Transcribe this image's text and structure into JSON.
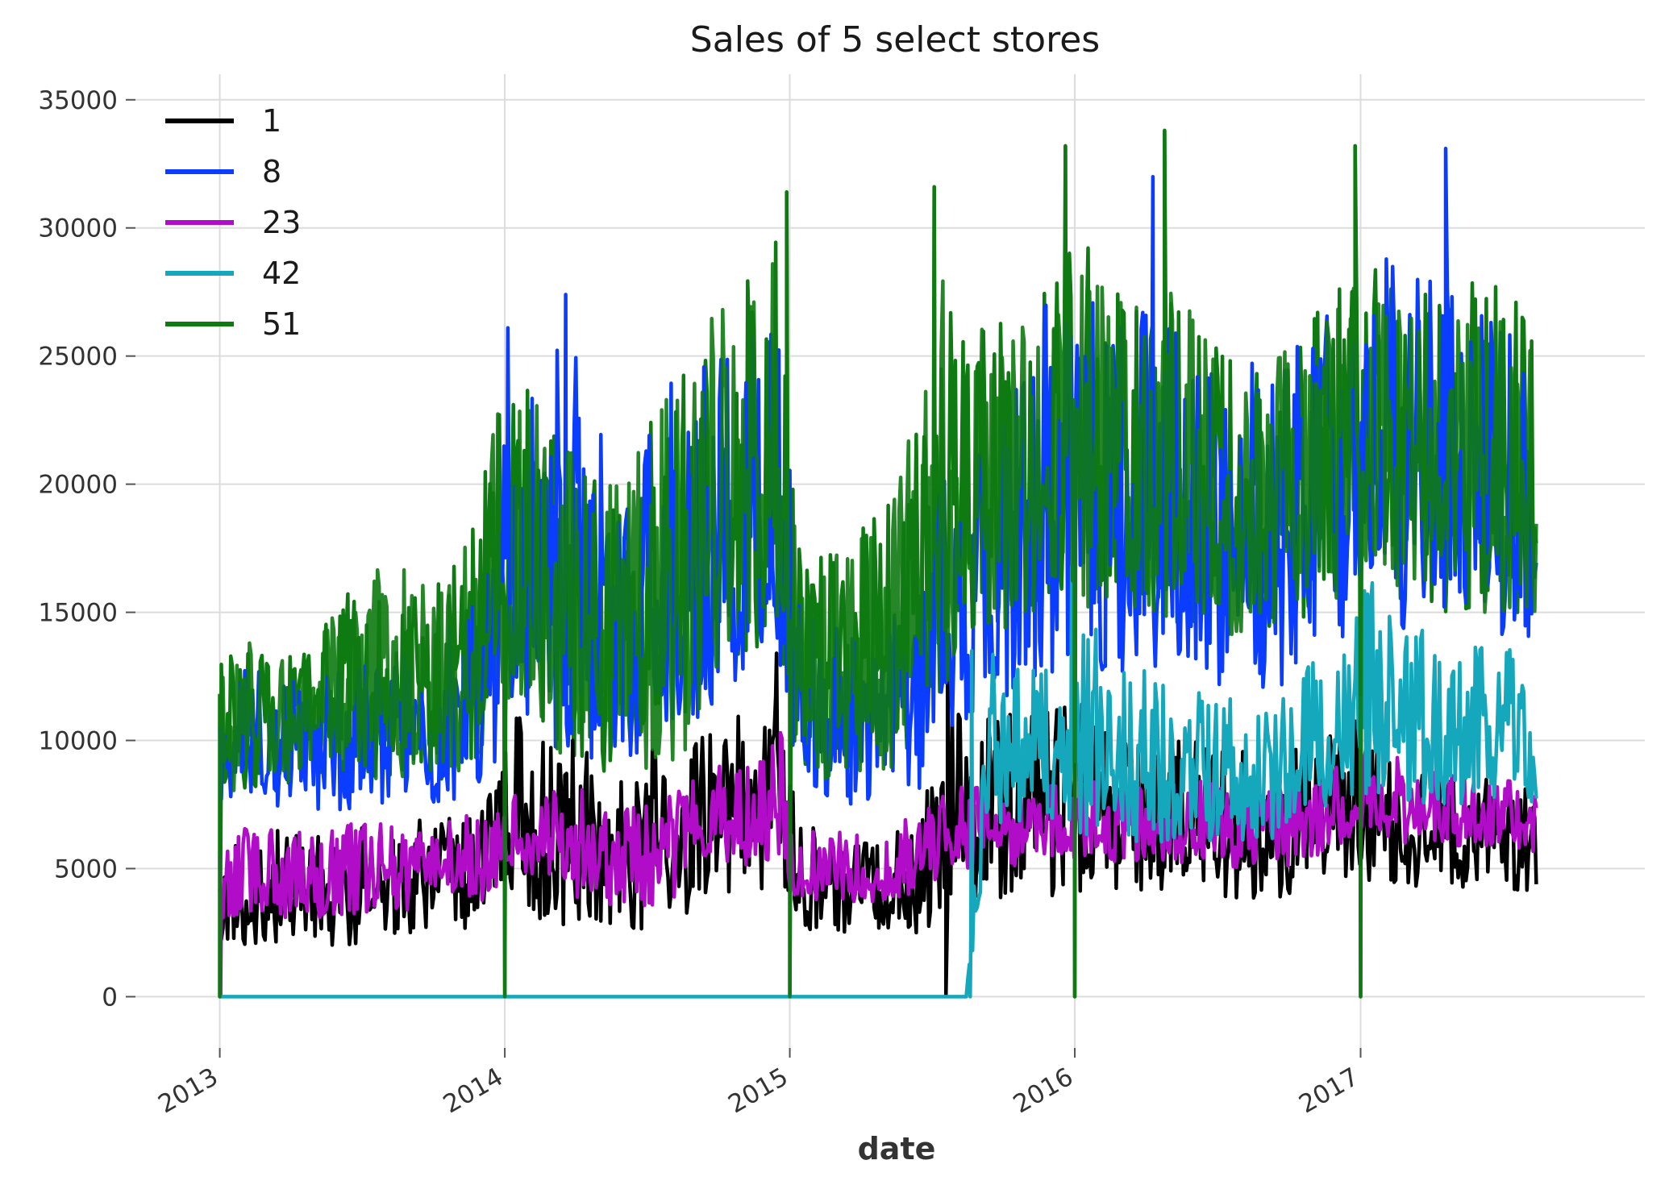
{
  "chart_data": {
    "type": "line",
    "title": "Sales of 5 select stores",
    "xlabel": "date",
    "ylabel": "",
    "xlim": [
      "2012-09-15",
      "2017-12-31"
    ],
    "ylim": [
      -2000,
      36000
    ],
    "x_ticks": [
      "2013",
      "2014",
      "2015",
      "2016",
      "2017"
    ],
    "y_ticks": [
      0,
      5000,
      10000,
      15000,
      20000,
      25000,
      30000,
      35000
    ],
    "y_tick_labels": [
      "0",
      "5000",
      "10000",
      "15000",
      "20000",
      "25000",
      "30000",
      "35000"
    ],
    "grid": true,
    "legend_position": "top-left",
    "sampling": "monthly approximate envelope (typical low/high) with notable spikes",
    "series": [
      {
        "name": "1",
        "color": "#000000",
        "x": [
          "2013-01",
          "2013-02",
          "2013-03",
          "2013-04",
          "2013-05",
          "2013-06",
          "2013-07",
          "2013-08",
          "2013-09",
          "2013-10",
          "2013-11",
          "2013-12",
          "2014-01",
          "2014-02",
          "2014-03",
          "2014-04",
          "2014-05",
          "2014-06",
          "2014-07",
          "2014-08",
          "2014-09",
          "2014-10",
          "2014-11",
          "2014-12",
          "2015-01",
          "2015-02",
          "2015-03",
          "2015-04",
          "2015-05",
          "2015-06",
          "2015-07",
          "2015-08",
          "2015-09",
          "2015-10",
          "2015-11",
          "2015-12",
          "2016-01",
          "2016-02",
          "2016-03",
          "2016-04",
          "2016-05",
          "2016-06",
          "2016-07",
          "2016-08",
          "2016-09",
          "2016-10",
          "2016-11",
          "2016-12",
          "2017-01",
          "2017-02",
          "2017-03",
          "2017-04",
          "2017-05",
          "2017-06",
          "2017-07",
          "2017-08"
        ],
        "low": [
          2000,
          2000,
          2000,
          2000,
          2000,
          2000,
          2200,
          2300,
          2400,
          2500,
          2500,
          2600,
          4000,
          3000,
          2500,
          2500,
          2500,
          2500,
          2500,
          3000,
          4000,
          4000,
          4000,
          4500,
          2500,
          2500,
          2500,
          2500,
          2500,
          2500,
          3000,
          3000,
          3500,
          3500,
          3800,
          4000,
          4000,
          4000,
          4000,
          4000,
          4000,
          4000,
          3800,
          3800,
          3800,
          4000,
          4200,
          4500,
          4500,
          4200,
          4200,
          4200,
          4200,
          4200,
          4200,
          4000
        ],
        "high": [
          6000,
          6000,
          6500,
          6500,
          6500,
          6500,
          6800,
          6800,
          7000,
          7000,
          7000,
          9500,
          11500,
          10000,
          10000,
          10000,
          9000,
          9000,
          10000,
          9000,
          11000,
          11000,
          11000,
          12000,
          7000,
          6500,
          6000,
          6000,
          6500,
          7000,
          11500,
          11000,
          11000,
          12000,
          12000,
          11500,
          11500,
          11000,
          10000,
          10000,
          10000,
          10000,
          10000,
          9500,
          9500,
          10000,
          10000,
          11000,
          11000,
          9000,
          9000,
          8500,
          8500,
          8500,
          8500,
          8000
        ],
        "spikes": [
          [
            "2014-12-15",
            13400
          ],
          [
            "2015-07-20",
            0
          ],
          [
            "2015-07-22",
            13400
          ]
        ]
      },
      {
        "name": "8",
        "color": "#0a3dff",
        "x": [
          "2013-01",
          "2013-02",
          "2013-03",
          "2013-04",
          "2013-05",
          "2013-06",
          "2013-07",
          "2013-08",
          "2013-09",
          "2013-10",
          "2013-11",
          "2013-12",
          "2014-01",
          "2014-02",
          "2014-03",
          "2014-04",
          "2014-05",
          "2014-06",
          "2014-07",
          "2014-08",
          "2014-09",
          "2014-10",
          "2014-11",
          "2014-12",
          "2015-01",
          "2015-02",
          "2015-03",
          "2015-04",
          "2015-05",
          "2015-06",
          "2015-07",
          "2015-08",
          "2015-09",
          "2015-10",
          "2015-11",
          "2015-12",
          "2016-01",
          "2016-02",
          "2016-03",
          "2016-04",
          "2016-05",
          "2016-06",
          "2016-07",
          "2016-08",
          "2016-09",
          "2016-10",
          "2016-11",
          "2016-12",
          "2017-01",
          "2017-02",
          "2017-03",
          "2017-04",
          "2017-05",
          "2017-06",
          "2017-07",
          "2017-08"
        ],
        "low": [
          7000,
          7000,
          7000,
          7000,
          7000,
          7000,
          7500,
          7500,
          7500,
          7500,
          8000,
          8500,
          11000,
          10000,
          9500,
          9000,
          9000,
          9000,
          9500,
          10000,
          11000,
          11500,
          12000,
          13000,
          8000,
          7500,
          7500,
          7500,
          8000,
          8000,
          10000,
          10500,
          11000,
          11500,
          12000,
          12500,
          12500,
          12500,
          12500,
          12500,
          12500,
          12500,
          12000,
          12000,
          12000,
          12500,
          13000,
          14000,
          14500,
          14000,
          14000,
          14000,
          14000,
          14000,
          14000,
          14000
        ],
        "high": [
          13000,
          13000,
          12000,
          12500,
          13000,
          13000,
          13500,
          14000,
          14000,
          14500,
          15000,
          17000,
          26000,
          24000,
          27000,
          25000,
          22000,
          22000,
          24000,
          24000,
          26000,
          26500,
          27000,
          28000,
          16000,
          14500,
          14500,
          14500,
          15000,
          16000,
          21000,
          21000,
          22000,
          25000,
          27000,
          28000,
          27500,
          27000,
          27000,
          26500,
          26000,
          26000,
          25000,
          25000,
          25000,
          26000,
          27000,
          28500,
          28500,
          29000,
          28000,
          28000,
          27000,
          27000,
          26500,
          22000
        ],
        "spikes": [
          [
            "2014-01-05",
            26100
          ],
          [
            "2014-03-20",
            27400
          ],
          [
            "2016-04-10",
            32000
          ],
          [
            "2017-04-20",
            33100
          ]
        ]
      },
      {
        "name": "23",
        "color": "#b10dc9",
        "x": [
          "2013-01",
          "2013-02",
          "2013-03",
          "2013-04",
          "2013-05",
          "2013-06",
          "2013-07",
          "2013-08",
          "2013-09",
          "2013-10",
          "2013-11",
          "2013-12",
          "2014-01",
          "2014-02",
          "2014-03",
          "2014-04",
          "2014-05",
          "2014-06",
          "2014-07",
          "2014-08",
          "2014-09",
          "2014-10",
          "2014-11",
          "2014-12",
          "2015-01",
          "2015-02",
          "2015-03",
          "2015-04",
          "2015-05",
          "2015-06",
          "2015-07",
          "2015-08",
          "2015-09",
          "2015-10",
          "2015-11",
          "2015-12",
          "2016-01",
          "2016-02",
          "2016-03",
          "2016-04",
          "2016-05",
          "2016-06",
          "2016-07",
          "2016-08",
          "2016-09",
          "2016-10",
          "2016-11",
          "2016-12",
          "2017-01",
          "2017-02",
          "2017-03",
          "2017-04",
          "2017-05",
          "2017-06",
          "2017-07",
          "2017-08"
        ],
        "low": [
          3000,
          3000,
          3000,
          3000,
          3000,
          3000,
          3200,
          3200,
          3300,
          3400,
          3500,
          3800,
          5000,
          4500,
          4000,
          3500,
          3500,
          3500,
          3500,
          4000,
          5000,
          5000,
          5000,
          5200,
          3500,
          3500,
          3500,
          3500,
          3800,
          4000,
          4800,
          5000,
          5000,
          5000,
          5200,
          5500,
          5200,
          5200,
          5200,
          5200,
          5200,
          5200,
          5000,
          5000,
          5000,
          5200,
          5500,
          6000,
          6500,
          6000,
          6000,
          6000,
          5800,
          5800,
          5800,
          5500
        ],
        "high": [
          7000,
          7000,
          6500,
          6500,
          6500,
          6800,
          6800,
          7000,
          7000,
          7000,
          7200,
          7500,
          8500,
          8000,
          8500,
          8000,
          7500,
          7500,
          8000,
          8500,
          9000,
          9000,
          9000,
          11000,
          7000,
          6500,
          6500,
          6500,
          7000,
          7500,
          8500,
          8500,
          8000,
          8000,
          8000,
          8500,
          8500,
          8500,
          8500,
          8500,
          8500,
          8500,
          8000,
          8000,
          8000,
          8500,
          9000,
          9500,
          10300,
          9500,
          9000,
          9000,
          9000,
          8500,
          8500,
          8000
        ],
        "spikes": [
          [
            "2013-01-02",
            0
          ],
          [
            "2014-12-20",
            10300
          ]
        ]
      },
      {
        "name": "42",
        "color": "#15a8bd",
        "x": [
          "2013-01",
          "2013-06",
          "2014-01",
          "2014-06",
          "2015-01",
          "2015-06",
          "2015-08",
          "2015-09",
          "2015-10",
          "2015-11",
          "2015-12",
          "2016-01",
          "2016-02",
          "2016-03",
          "2016-04",
          "2016-05",
          "2016-06",
          "2016-07",
          "2016-08",
          "2016-09",
          "2016-10",
          "2016-11",
          "2016-12",
          "2017-01",
          "2017-02",
          "2017-03",
          "2017-04",
          "2017-05",
          "2017-06",
          "2017-07",
          "2017-08"
        ],
        "low": [
          0,
          0,
          0,
          0,
          0,
          0,
          0,
          6500,
          6500,
          6500,
          6500,
          6000,
          6000,
          6000,
          6000,
          6000,
          6000,
          6000,
          6000,
          6000,
          7000,
          7000,
          7500,
          8000,
          7500,
          7500,
          7500,
          7500,
          7500,
          7500,
          7500
        ],
        "high": [
          0,
          0,
          0,
          0,
          0,
          0,
          0,
          13500,
          13000,
          13000,
          14000,
          16500,
          13500,
          13000,
          12500,
          12500,
          12000,
          12000,
          11500,
          11500,
          13000,
          14000,
          15000,
          16300,
          14500,
          14500,
          14000,
          14000,
          14000,
          13500,
          10000
        ],
        "spikes": [
          [
            "2015-08-20",
            0
          ],
          [
            "2015-08-22",
            13500
          ],
          [
            "2015-12-28",
            16800
          ]
        ]
      },
      {
        "name": "51",
        "color": "#0e7a12",
        "x": [
          "2013-01",
          "2013-02",
          "2013-03",
          "2013-04",
          "2013-05",
          "2013-06",
          "2013-07",
          "2013-08",
          "2013-09",
          "2013-10",
          "2013-11",
          "2013-12",
          "2014-01",
          "2014-02",
          "2014-03",
          "2014-04",
          "2014-05",
          "2014-06",
          "2014-07",
          "2014-08",
          "2014-09",
          "2014-10",
          "2014-11",
          "2014-12",
          "2015-01",
          "2015-02",
          "2015-03",
          "2015-04",
          "2015-05",
          "2015-06",
          "2015-07",
          "2015-08",
          "2015-09",
          "2015-10",
          "2015-11",
          "2015-12",
          "2016-01",
          "2016-02",
          "2016-03",
          "2016-04",
          "2016-05",
          "2016-06",
          "2016-07",
          "2016-08",
          "2016-09",
          "2016-10",
          "2016-11",
          "2016-12",
          "2017-01",
          "2017-02",
          "2017-03",
          "2017-04",
          "2017-05",
          "2017-06",
          "2017-07",
          "2017-08"
        ],
        "low": [
          8000,
          8000,
          8000,
          8500,
          8500,
          8500,
          8500,
          8500,
          8500,
          8500,
          9000,
          9500,
          12000,
          11000,
          9000,
          9000,
          8500,
          8500,
          9000,
          9000,
          12000,
          13000,
          13500,
          14000,
          8500,
          8500,
          8500,
          8500,
          9000,
          9500,
          12000,
          13000,
          14000,
          14500,
          15000,
          15500,
          15000,
          15000,
          15000,
          14500,
          14500,
          14500,
          14000,
          14000,
          14000,
          14500,
          15000,
          16000,
          16000,
          15500,
          15500,
          15000,
          15000,
          15000,
          15000,
          14500
        ],
        "high": [
          13500,
          14000,
          13000,
          13500,
          15000,
          16000,
          17500,
          17500,
          16000,
          16500,
          18500,
          22000,
          25000,
          23000,
          23000,
          22000,
          20000,
          21000,
          23000,
          24000,
          27000,
          28000,
          28500,
          30000,
          17000,
          17500,
          18000,
          19000,
          20000,
          23000,
          28000,
          28500,
          26500,
          26000,
          27000,
          29000,
          30000,
          28000,
          27000,
          28000,
          27500,
          26500,
          25000,
          24500,
          25000,
          26000,
          27000,
          28000,
          29000,
          28000,
          27500,
          28000,
          28000,
          28000,
          28500,
          25500
        ],
        "spikes": [
          [
            "2013-01-01",
            0
          ],
          [
            "2014-01-01",
            0
          ],
          [
            "2015-01-01",
            0
          ],
          [
            "2016-01-01",
            0
          ],
          [
            "2017-01-01",
            0
          ],
          [
            "2014-12-28",
            31400
          ],
          [
            "2015-07-05",
            31600
          ],
          [
            "2015-12-20",
            33200
          ],
          [
            "2016-04-25",
            33800
          ],
          [
            "2016-12-25",
            33200
          ]
        ]
      }
    ]
  }
}
